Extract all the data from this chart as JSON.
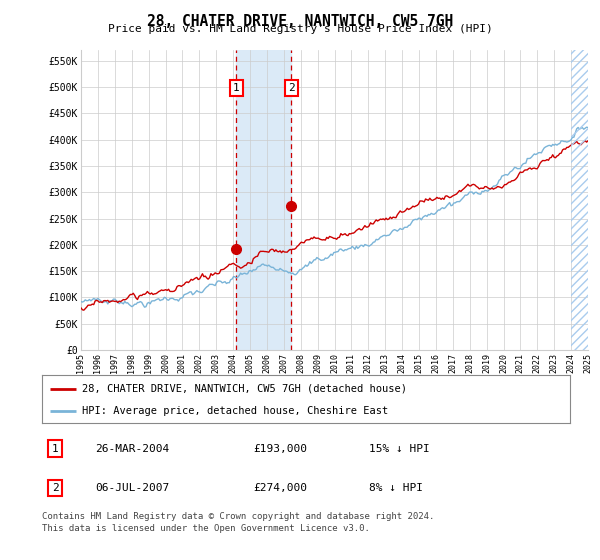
{
  "title": "28, CHATER DRIVE, NANTWICH, CW5 7GH",
  "subtitle": "Price paid vs. HM Land Registry's House Price Index (HPI)",
  "ylabel_ticks": [
    "£0",
    "£50K",
    "£100K",
    "£150K",
    "£200K",
    "£250K",
    "£300K",
    "£350K",
    "£400K",
    "£450K",
    "£500K",
    "£550K"
  ],
  "ytick_values": [
    0,
    50000,
    100000,
    150000,
    200000,
    250000,
    300000,
    350000,
    400000,
    450000,
    500000,
    550000
  ],
  "ylim": [
    0,
    570000
  ],
  "sale1_year": 2004.23,
  "sale1_price": 193000,
  "sale2_year": 2007.51,
  "sale2_price": 274000,
  "hpi_line_color": "#7ab4d8",
  "price_line_color": "#cc0000",
  "shade_color": "#dbeaf7",
  "grid_color": "#cccccc",
  "legend_red_label": "28, CHATER DRIVE, NANTWICH, CW5 7GH (detached house)",
  "legend_blue_label": "HPI: Average price, detached house, Cheshire East",
  "table_row1_num": "1",
  "table_row1_date": "26-MAR-2004",
  "table_row1_price": "£193,000",
  "table_row1_hpi": "15% ↓ HPI",
  "table_row2_num": "2",
  "table_row2_date": "06-JUL-2007",
  "table_row2_price": "£274,000",
  "table_row2_hpi": "8% ↓ HPI",
  "footer_line1": "Contains HM Land Registry data © Crown copyright and database right 2024.",
  "footer_line2": "This data is licensed under the Open Government Licence v3.0.",
  "bg_color": "#ffffff",
  "x_start_year": 1995,
  "x_end_year": 2025
}
